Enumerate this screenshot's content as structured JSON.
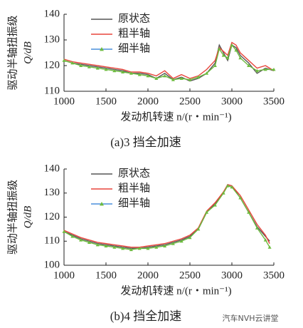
{
  "chart_data": [
    {
      "type": "line",
      "ylabel": "驱动半轴扭振级",
      "yunit": "Q/dB",
      "xlabel": "发动机转速 n/(r・min⁻¹)",
      "caption": "(a)3 挡全加速",
      "x": [
        1000,
        1100,
        1200,
        1300,
        1400,
        1500,
        1600,
        1700,
        1800,
        1900,
        2000,
        2100,
        2200,
        2300,
        2400,
        2500,
        2600,
        2700,
        2800,
        2850,
        2900,
        2950,
        3000,
        3050,
        3100,
        3200,
        3300,
        3400,
        3500
      ],
      "series": [
        {
          "name": "原状态",
          "color": "#555555",
          "values": [
            122,
            121,
            120.5,
            120,
            119.5,
            119,
            118.5,
            118,
            117,
            117,
            116.5,
            115,
            117,
            114.5,
            115.5,
            114,
            115,
            117,
            121,
            128,
            125,
            122,
            128,
            127,
            124,
            121,
            117,
            119,
            118
          ]
        },
        {
          "name": "粗半轴",
          "color": "#e8453c",
          "values": [
            122.5,
            121.5,
            121,
            120.5,
            120,
            119.5,
            119,
            118.5,
            117.5,
            117.5,
            117,
            116,
            118,
            115,
            116.5,
            115,
            116,
            118.5,
            122,
            127,
            125.5,
            124,
            129,
            128,
            125,
            122,
            119,
            120,
            118
          ]
        },
        {
          "name": "细半轴",
          "color": "#6dbb3f",
          "marker": "triangle",
          "values": [
            122,
            121,
            120,
            119.5,
            119,
            118.5,
            118,
            117.5,
            117,
            116.5,
            116,
            115,
            116,
            114.5,
            115,
            114.5,
            115.5,
            117,
            120,
            126.5,
            124,
            123,
            128,
            126,
            123,
            120,
            118,
            118.5,
            118.5
          ]
        }
      ],
      "xlim": [
        1000,
        3500
      ],
      "xticks": [
        1000,
        1500,
        2000,
        2500,
        3000,
        3500
      ],
      "ylim": [
        110,
        140
      ],
      "yticks": [
        110,
        120,
        130,
        140
      ],
      "legend": "upper left"
    },
    {
      "type": "line",
      "ylabel": "驱动半轴扭振级",
      "yunit": "Q/dB",
      "xlabel": "发动机转速 n/(r・min⁻¹)",
      "caption": "(b)4 挡全加速",
      "x": [
        1000,
        1100,
        1200,
        1300,
        1400,
        1500,
        1600,
        1700,
        1800,
        1900,
        2000,
        2100,
        2200,
        2300,
        2400,
        2500,
        2600,
        2700,
        2800,
        2900,
        2950,
        3000,
        3100,
        3200,
        3300,
        3400,
        3450
      ],
      "series": [
        {
          "name": "原状态",
          "color": "#555555",
          "values": [
            114,
            112.5,
            111,
            110,
            109,
            108.5,
            108,
            107.5,
            107,
            107,
            107.5,
            108,
            108.5,
            109.5,
            110.5,
            112,
            115,
            122,
            125.5,
            130,
            133.5,
            133,
            128,
            122,
            116,
            112,
            110
          ]
        },
        {
          "name": "粗半轴",
          "color": "#e8453c",
          "values": [
            114.5,
            113,
            111.5,
            110.5,
            109.5,
            109,
            108.5,
            108,
            107.5,
            107.5,
            108,
            108.5,
            109,
            110,
            111,
            112.5,
            115.5,
            122.5,
            126,
            130.5,
            133.5,
            133,
            129,
            123,
            117,
            112.5,
            109
          ]
        },
        {
          "name": "细半轴",
          "color": "#6dbb3f",
          "marker": "triangle",
          "values": [
            114,
            112,
            110.5,
            109.5,
            108.5,
            108,
            107.5,
            107,
            106.5,
            107,
            107,
            107.5,
            108,
            109,
            110,
            111.5,
            115,
            122,
            125,
            130,
            133,
            132.5,
            128,
            122,
            115.5,
            110.5,
            107.5
          ]
        }
      ],
      "xlim": [
        1000,
        3500
      ],
      "xticks": [
        1000,
        1500,
        2000,
        2500,
        3000,
        3500
      ],
      "ylim": [
        100,
        140
      ],
      "yticks": [
        100,
        110,
        120,
        130,
        140
      ],
      "legend": "upper left"
    }
  ],
  "watermark": "汽车NVH云讲堂"
}
